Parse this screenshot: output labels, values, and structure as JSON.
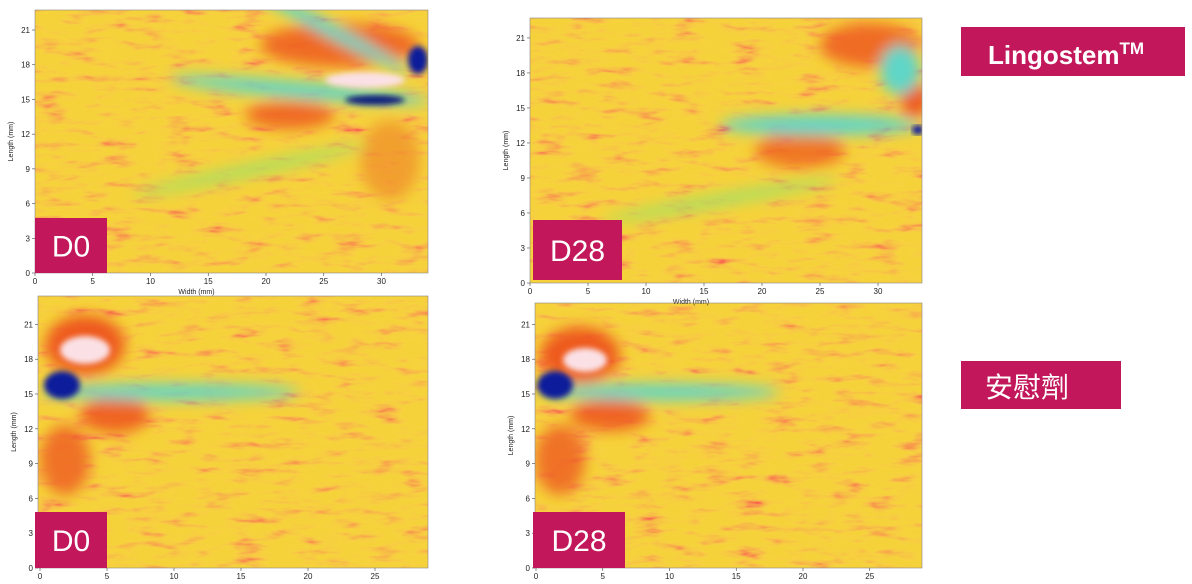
{
  "panels": [
    {
      "label": "D0",
      "yticks": [
        0,
        3,
        6,
        9,
        12,
        15,
        18,
        21
      ],
      "xticks": [
        0,
        5,
        10,
        15,
        20,
        25,
        30
      ],
      "y_title": "Length (mm)",
      "x_title": "Width (mm)"
    },
    {
      "label": "D28",
      "yticks": [
        0,
        3,
        6,
        9,
        12,
        15,
        18,
        21
      ],
      "xticks": [
        0,
        5,
        10,
        15,
        20,
        25,
        30
      ],
      "y_title": "Length (mm)",
      "x_title": "Width (mm)"
    },
    {
      "label": "D0",
      "yticks": [
        0,
        3,
        6,
        9,
        12,
        15,
        18,
        21
      ],
      "xticks": [
        0,
        5,
        10,
        15,
        20,
        25
      ],
      "y_title": "Length (mm)"
    },
    {
      "label": "D28",
      "yticks": [
        0,
        3,
        6,
        9,
        12,
        15,
        18,
        21
      ],
      "xticks": [
        0,
        5,
        10,
        15,
        20,
        25
      ],
      "y_title": "Length (mm)"
    }
  ],
  "groups": [
    {
      "name": "Lingostem",
      "mark": "TM"
    },
    {
      "name": "安慰劑"
    }
  ]
}
